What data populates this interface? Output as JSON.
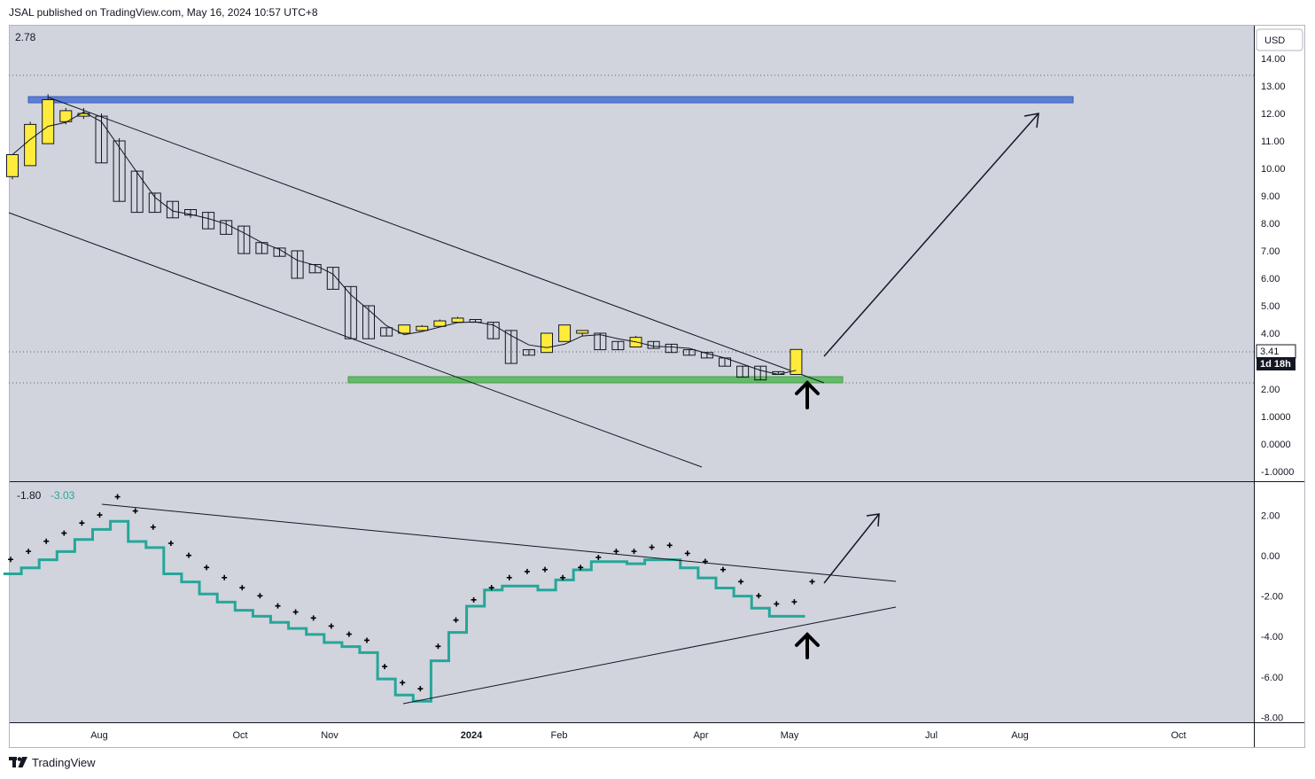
{
  "header": {
    "publisher_line": "JSAL published on TradingView.com, May 16, 2024 10:57 UTC+8"
  },
  "footer": {
    "brand": "TradingView"
  },
  "colors": {
    "background": "#d1d4dc",
    "bull_candle": "#ffeb3b",
    "resistance_zone": "#5b7fd6",
    "support_zone": "#66bb6a",
    "oscillator_line": "#26a69a",
    "dots": "#000000"
  },
  "chart_data": [
    {
      "type": "candlestick",
      "timeframe": "weekly",
      "currency": "USD",
      "top_left_value": "2.78",
      "price_tag": "3.41",
      "countdown_tag": "1d 18h",
      "y_ticks": [
        "14.00",
        "13.00",
        "12.00",
        "11.00",
        "10.00",
        "9.00",
        "8.00",
        "7.00",
        "6.00",
        "5.00",
        "4.00",
        "2.00",
        "1.0000",
        "0.0000",
        "-1.0000"
      ],
      "x_ticks": [
        "Aug",
        "Oct",
        "Nov",
        "2024",
        "Feb",
        "Apr",
        "May",
        "Jul",
        "Aug",
        "Oct"
      ],
      "candles": [
        {
          "o": 9.7,
          "h": 10.5,
          "l": 9.6,
          "c": 10.5
        },
        {
          "o": 10.1,
          "h": 11.7,
          "l": 10.1,
          "c": 11.6
        },
        {
          "o": 10.9,
          "h": 12.7,
          "l": 10.9,
          "c": 12.5
        },
        {
          "o": 11.7,
          "h": 12.2,
          "l": 11.6,
          "c": 12.1
        },
        {
          "o": 11.9,
          "h": 12.2,
          "l": 11.8,
          "c": 12.0
        },
        {
          "o": 11.9,
          "h": 12.0,
          "l": 10.2,
          "c": 10.2
        },
        {
          "o": 11.0,
          "h": 11.1,
          "l": 8.8,
          "c": 8.8
        },
        {
          "o": 9.9,
          "h": 9.9,
          "l": 8.4,
          "c": 8.4
        },
        {
          "o": 9.1,
          "h": 9.1,
          "l": 8.4,
          "c": 8.4
        },
        {
          "o": 8.8,
          "h": 8.8,
          "l": 8.2,
          "c": 8.2
        },
        {
          "o": 8.5,
          "h": 8.5,
          "l": 8.2,
          "c": 8.3
        },
        {
          "o": 8.4,
          "h": 8.4,
          "l": 7.8,
          "c": 7.8
        },
        {
          "o": 8.1,
          "h": 8.1,
          "l": 7.6,
          "c": 7.6
        },
        {
          "o": 7.9,
          "h": 7.9,
          "l": 6.9,
          "c": 6.9
        },
        {
          "o": 7.3,
          "h": 7.3,
          "l": 6.9,
          "c": 6.9
        },
        {
          "o": 7.1,
          "h": 7.1,
          "l": 6.8,
          "c": 6.8
        },
        {
          "o": 7.0,
          "h": 7.0,
          "l": 6.0,
          "c": 6.0
        },
        {
          "o": 6.5,
          "h": 6.5,
          "l": 6.2,
          "c": 6.2
        },
        {
          "o": 6.4,
          "h": 6.4,
          "l": 5.6,
          "c": 5.6
        },
        {
          "o": 5.7,
          "h": 5.7,
          "l": 3.8,
          "c": 3.8
        },
        {
          "o": 5.0,
          "h": 5.0,
          "l": 3.8,
          "c": 3.8
        },
        {
          "o": 4.2,
          "h": 4.2,
          "l": 3.9,
          "c": 3.9
        },
        {
          "o": 4.0,
          "h": 4.3,
          "l": 4.0,
          "c": 4.3
        },
        {
          "o": 4.1,
          "h": 4.3,
          "l": 4.1,
          "c": 4.25
        },
        {
          "o": 4.25,
          "h": 4.5,
          "l": 4.25,
          "c": 4.45
        },
        {
          "o": 4.4,
          "h": 4.6,
          "l": 4.4,
          "c": 4.55
        },
        {
          "o": 4.5,
          "h": 4.5,
          "l": 4.4,
          "c": 4.4
        },
        {
          "o": 4.4,
          "h": 4.4,
          "l": 3.8,
          "c": 3.8
        },
        {
          "o": 4.1,
          "h": 4.1,
          "l": 2.9,
          "c": 2.9
        },
        {
          "o": 3.4,
          "h": 3.4,
          "l": 3.2,
          "c": 3.2
        },
        {
          "o": 3.3,
          "h": 4.0,
          "l": 3.3,
          "c": 4.0
        },
        {
          "o": 3.7,
          "h": 4.3,
          "l": 3.7,
          "c": 4.3
        },
        {
          "o": 4.0,
          "h": 4.1,
          "l": 3.9,
          "c": 4.1
        },
        {
          "o": 4.0,
          "h": 4.0,
          "l": 3.4,
          "c": 3.4
        },
        {
          "o": 3.7,
          "h": 3.7,
          "l": 3.4,
          "c": 3.4
        },
        {
          "o": 3.5,
          "h": 3.9,
          "l": 3.5,
          "c": 3.85
        },
        {
          "o": 3.7,
          "h": 3.7,
          "l": 3.45,
          "c": 3.45
        },
        {
          "o": 3.6,
          "h": 3.6,
          "l": 3.3,
          "c": 3.3
        },
        {
          "o": 3.4,
          "h": 3.4,
          "l": 3.2,
          "c": 3.2
        },
        {
          "o": 3.3,
          "h": 3.3,
          "l": 3.1,
          "c": 3.1
        },
        {
          "o": 3.1,
          "h": 3.1,
          "l": 2.8,
          "c": 2.8
        },
        {
          "o": 2.8,
          "h": 2.8,
          "l": 2.4,
          "c": 2.4
        },
        {
          "o": 2.8,
          "h": 2.8,
          "l": 2.3,
          "c": 2.3
        },
        {
          "o": 2.6,
          "h": 2.6,
          "l": 2.5,
          "c": 2.5
        },
        {
          "o": 2.5,
          "h": 3.41,
          "l": 2.5,
          "c": 3.41
        }
      ]
    },
    {
      "type": "line",
      "label_1": "-1.80",
      "label_2": "-3.03",
      "y_ticks": [
        "2.00",
        "0.00",
        "-2.00",
        "-4.00",
        "-6.00",
        "-8.00"
      ]
    }
  ]
}
